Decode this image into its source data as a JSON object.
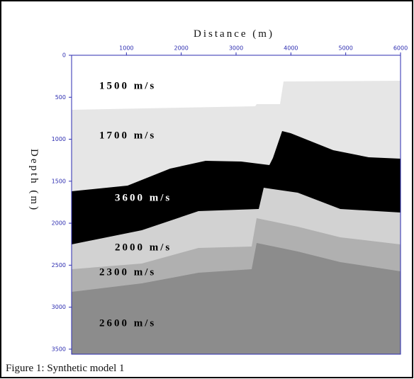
{
  "chart_data": {
    "type": "layers",
    "x_label": "Distance (m)",
    "y_label": "Depth (m)",
    "xlim": [
      0,
      6000
    ],
    "ylim": [
      0,
      3560
    ],
    "xticks": [
      1000,
      2000,
      3000,
      4000,
      5000,
      6000
    ],
    "yticks": [
      0,
      500,
      1000,
      1500,
      2000,
      2500,
      3000,
      3500
    ],
    "layer_labels": [
      "1500 m/s",
      "1700 m/s",
      "3600 m/s",
      "2000 m/s",
      "2300 m/s",
      "2600 m/s"
    ],
    "caption": "Figure 1:  Synthetic model 1"
  }
}
